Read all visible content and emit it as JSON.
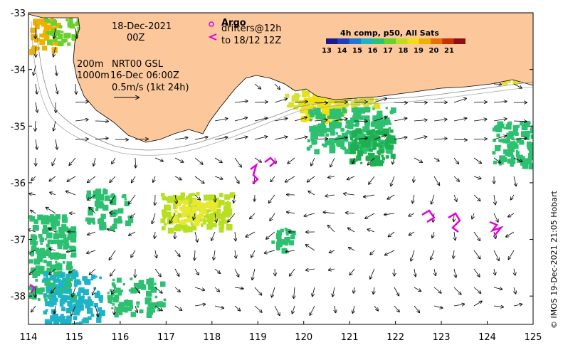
{
  "map": {
    "x_ticks": [
      "114",
      "115",
      "116",
      "117",
      "118",
      "119",
      "120",
      "121",
      "122",
      "123",
      "124",
      "125"
    ],
    "y_ticks": [
      "-33",
      "-34",
      "-35",
      "-36",
      "-37",
      "-38"
    ],
    "lon_range": [
      114,
      125
    ],
    "lat_range": [
      -33,
      -38.5
    ],
    "land_color": "#fcc89b",
    "frame_color": "#000000"
  },
  "annotations": {
    "date": "18-Dec-2021",
    "time": "00Z",
    "depth1": "200m",
    "depth2": "1000m",
    "product": "NRT00 GSL",
    "product_date": "16-Dec 06:00Z",
    "scale": "0.5m/s (1kt 24h)"
  },
  "argo": {
    "label": "Argo",
    "drifters_line1": "drifters@12h",
    "drifters_line2": "to 18/12 12Z",
    "color": "#e000e0"
  },
  "colorbar": {
    "title": "4h comp, p50, All Sats",
    "labels": [
      "13",
      "14",
      "15",
      "16",
      "17",
      "18",
      "19",
      "20",
      "21"
    ],
    "colors": [
      "#1a1a8c",
      "#1f3fbf",
      "#1e78d8",
      "#1eb4c8",
      "#2cc070",
      "#6ad02c",
      "#b8e020",
      "#f0e010",
      "#f0b000",
      "#e87000",
      "#c83000",
      "#8c1010"
    ]
  },
  "credit": "© IMOS 19-Dec-2021 21:05 Hobart"
}
